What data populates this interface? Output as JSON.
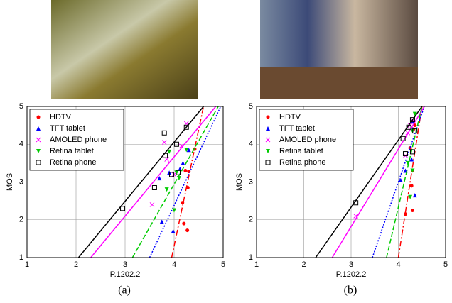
{
  "chart_data": [
    {
      "type": "scatter",
      "caption": "(a)",
      "xlabel": "P.1202.2",
      "ylabel": "MOS",
      "xlim": [
        1,
        5
      ],
      "ylim": [
        1,
        5
      ],
      "xticks": [
        1,
        2,
        3,
        4,
        5
      ],
      "yticks": [
        1,
        2,
        3,
        4,
        5
      ],
      "grid": true,
      "legend": "upper left",
      "series": [
        {
          "name": "HDTV",
          "color": "#ff0000",
          "marker": "dot",
          "dash": "8 3 2 3",
          "x": [
            4.17,
            4.2,
            4.27,
            4.28,
            4.3,
            4.42,
            4.23
          ],
          "values": [
            2.45,
            1.9,
            1.72,
            2.85,
            3.28,
            3.87,
            3.3
          ],
          "fit": {
            "x": [
              3.95,
              4.6
            ],
            "y": [
              1,
              5
            ]
          }
        },
        {
          "name": "TFT tablet",
          "color": "#0000ff",
          "marker": "triangle-up",
          "dash": "2 2",
          "x": [
            3.75,
            3.98,
            4.12,
            4.18,
            3.9,
            4.3,
            3.7
          ],
          "values": [
            1.95,
            1.7,
            3.35,
            3.5,
            3.25,
            3.85,
            3.1
          ],
          "fit": {
            "x": [
              3.5,
              4.95
            ],
            "y": [
              1,
              5
            ]
          }
        },
        {
          "name": "AMOLED phone",
          "color": "#ff00ff",
          "marker": "x",
          "dash": "none",
          "x": [
            3.55,
            3.8,
            4.25,
            4.15,
            3.85,
            4.0
          ],
          "values": [
            2.4,
            4.05,
            4.55,
            3.95,
            3.6,
            3.2
          ],
          "fit": {
            "x": [
              2.3,
              4.85
            ],
            "y": [
              1,
              5
            ]
          }
        },
        {
          "name": "Retina tablet",
          "color": "#00cc00",
          "marker": "triangle-down",
          "dash": "7 3",
          "x": [
            3.85,
            4.0,
            4.05,
            4.25,
            3.9,
            4.1
          ],
          "values": [
            2.8,
            2.25,
            3.25,
            3.85,
            3.8,
            3.1
          ],
          "fit": {
            "x": [
              3.15,
              4.9
            ],
            "y": [
              1,
              5
            ]
          }
        },
        {
          "name": "Retina phone",
          "color": "#000000",
          "marker": "square",
          "dash": "none",
          "x": [
            2.95,
            3.6,
            3.8,
            3.82,
            3.95,
            4.05,
            4.08,
            4.25
          ],
          "values": [
            2.3,
            2.85,
            4.3,
            3.7,
            3.2,
            4.0,
            3.25,
            4.45
          ],
          "fit": {
            "x": [
              2.05,
              4.6
            ],
            "y": [
              1,
              5
            ]
          }
        }
      ]
    },
    {
      "type": "scatter",
      "caption": "(b)",
      "xlabel": "P.1202.2",
      "ylabel": "MOS",
      "xlim": [
        1,
        5
      ],
      "ylim": [
        1,
        5
      ],
      "xticks": [
        1,
        2,
        3,
        4,
        5
      ],
      "yticks": [
        1,
        2,
        3,
        4,
        5
      ],
      "grid": true,
      "legend": "upper left",
      "series": [
        {
          "name": "HDTV",
          "color": "#ff0000",
          "marker": "dot",
          "dash": "8 3 2 3",
          "x": [
            4.15,
            4.3,
            4.28,
            4.3,
            4.35,
            4.32,
            4.25
          ],
          "values": [
            2.15,
            2.25,
            2.9,
            3.3,
            4.5,
            4.4,
            3.9
          ],
          "fit": {
            "x": [
              4.0,
              4.5
            ],
            "y": [
              1,
              5
            ]
          }
        },
        {
          "name": "TFT tablet",
          "color": "#0000ff",
          "marker": "triangle-up",
          "dash": "2 2",
          "x": [
            4.05,
            4.15,
            4.3,
            4.28,
            4.35,
            4.3
          ],
          "values": [
            3.05,
            3.3,
            4.4,
            3.6,
            2.65,
            4.6
          ],
          "fit": {
            "x": [
              3.45,
              4.55
            ],
            "y": [
              1,
              5
            ]
          }
        },
        {
          "name": "AMOLED phone",
          "color": "#ff00ff",
          "marker": "x",
          "dash": "none",
          "x": [
            3.1,
            4.15,
            4.25,
            4.3,
            4.2
          ],
          "values": [
            2.1,
            3.7,
            4.5,
            4.65,
            4.3
          ],
          "fit": {
            "x": [
              2.6,
              4.55
            ],
            "y": [
              1,
              5
            ]
          }
        },
        {
          "name": "Retina tablet",
          "color": "#00cc00",
          "marker": "triangle-down",
          "dash": "7 3",
          "x": [
            4.2,
            4.3,
            4.35,
            4.3,
            4.25
          ],
          "values": [
            3.5,
            3.3,
            4.8,
            4.35,
            2.6
          ],
          "fit": {
            "x": [
              3.75,
              4.5
            ],
            "y": [
              1,
              5
            ]
          }
        },
        {
          "name": "Retina phone",
          "color": "#000000",
          "marker": "square",
          "dash": "none",
          "x": [
            3.1,
            4.1,
            4.15,
            4.22,
            4.3,
            4.3,
            4.35
          ],
          "values": [
            2.45,
            4.15,
            3.75,
            4.45,
            4.65,
            3.8,
            4.35
          ],
          "fit": {
            "x": [
              2.25,
              4.5
            ],
            "y": [
              1,
              5
            ]
          }
        }
      ]
    }
  ]
}
